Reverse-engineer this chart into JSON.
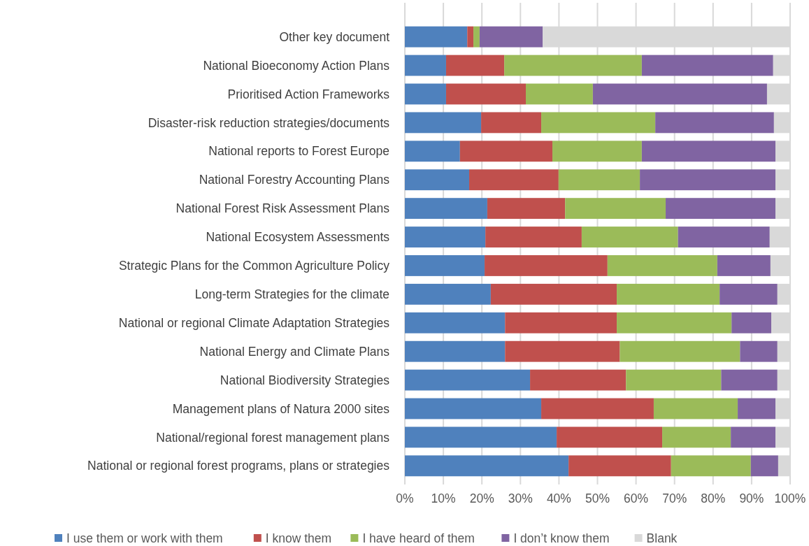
{
  "chart_data": {
    "type": "bar",
    "orientation": "horizontal",
    "stacked": true,
    "categories": [
      "Other key document",
      "National Bioeconomy Action Plans",
      "Prioritised Action Frameworks",
      "Disaster-risk reduction strategies/documents",
      "National reports to Forest Europe",
      "National Forestry Accounting Plans",
      "National Forest Risk Assessment Plans",
      "National Ecosystem Assessments",
      "Strategic Plans for the Common Agriculture Policy",
      "Long-term Strategies for the climate",
      "National or regional Climate Adaptation Strategies",
      "National Energy and Climate Plans",
      "National Biodiversity Strategies",
      "Management plans of Natura 2000 sites",
      "National/regional forest management plans",
      "National or regional forest programs, plans or strategies"
    ],
    "series": [
      {
        "name": "I use them or work with them",
        "color": "#4f81bd",
        "values": [
          16.2,
          10.7,
          10.7,
          19.8,
          14.3,
          16.7,
          21.4,
          20.9,
          20.7,
          22.3,
          26.0,
          26.0,
          32.5,
          35.4,
          39.4,
          42.5
        ]
      },
      {
        "name": "I know them",
        "color": "#c0504d",
        "values": [
          1.6,
          15.1,
          20.7,
          15.6,
          24.0,
          23.2,
          20.2,
          25.0,
          31.9,
          32.7,
          29.0,
          29.8,
          24.9,
          29.2,
          27.4,
          26.6
        ]
      },
      {
        "name": "I have heard of them",
        "color": "#9bbb59",
        "values": [
          1.6,
          35.7,
          17.4,
          29.6,
          23.2,
          21.1,
          26.1,
          25.0,
          28.5,
          26.7,
          29.8,
          31.2,
          24.7,
          21.8,
          17.8,
          20.7
        ]
      },
      {
        "name": "I don’t know them",
        "color": "#8064a2",
        "values": [
          16.4,
          34.1,
          45.2,
          30.8,
          34.7,
          35.2,
          28.5,
          23.8,
          13.8,
          15.0,
          10.3,
          9.7,
          14.6,
          9.8,
          11.6,
          7.1
        ]
      },
      {
        "name": "Blank",
        "color": "#d9d9d9",
        "values": [
          64.2,
          4.4,
          6.0,
          4.2,
          3.8,
          3.8,
          3.8,
          5.3,
          5.1,
          3.3,
          4.9,
          3.3,
          3.3,
          3.8,
          3.8,
          3.1
        ]
      }
    ],
    "xlim": [
      0,
      100
    ],
    "xticks": [
      {
        "value": 0,
        "label": "0%"
      },
      {
        "value": 10,
        "label": "10%"
      },
      {
        "value": 20,
        "label": "20%"
      },
      {
        "value": 30,
        "label": "30%"
      },
      {
        "value": 40,
        "label": "40%"
      },
      {
        "value": 50,
        "label": "50%"
      },
      {
        "value": 60,
        "label": "60%"
      },
      {
        "value": 70,
        "label": "70%"
      },
      {
        "value": 80,
        "label": "80%"
      },
      {
        "value": 90,
        "label": "90%"
      },
      {
        "value": 100,
        "label": "100%"
      }
    ],
    "grid": "x",
    "legend": "bottom"
  }
}
